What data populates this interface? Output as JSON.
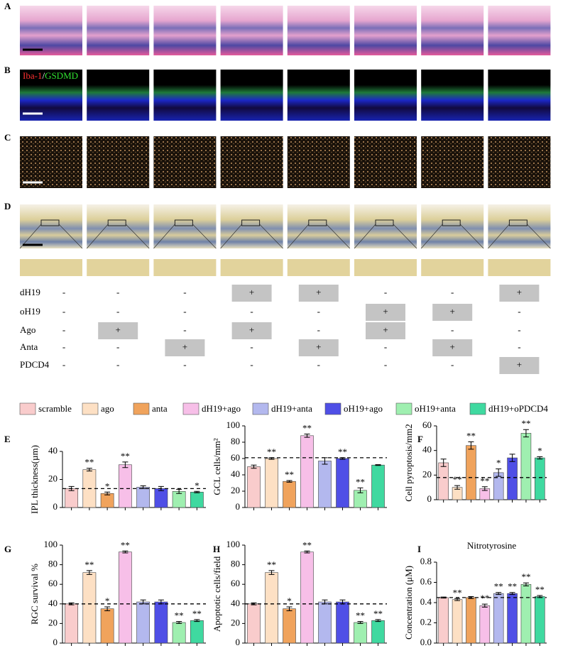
{
  "panel_labels": [
    "A",
    "B",
    "C",
    "D",
    "E",
    "F",
    "G",
    "H",
    "I"
  ],
  "stain_label": [
    "Iba-1",
    "/",
    "GSDMD"
  ],
  "treatments": {
    "rows": [
      {
        "label": "dH19",
        "cells": [
          "-",
          "-",
          "-",
          "+",
          "+",
          "-",
          "-",
          "+"
        ]
      },
      {
        "label": "oH19",
        "cells": [
          "-",
          "-",
          "-",
          "-",
          "-",
          "+",
          "+",
          "-"
        ]
      },
      {
        "label": "Ago",
        "cells": [
          "-",
          "+",
          "-",
          "+",
          "-",
          "+",
          "-",
          "-"
        ]
      },
      {
        "label": "Anta",
        "cells": [
          "-",
          "-",
          "+",
          "-",
          "+",
          "-",
          "+",
          "-"
        ]
      },
      {
        "label": "PDCD4",
        "cells": [
          "-",
          "-",
          "-",
          "-",
          "-",
          "-",
          "-",
          "+"
        ]
      }
    ]
  },
  "legend": [
    {
      "name": "scramble",
      "color": "#f9cccc"
    },
    {
      "name": "ago",
      "color": "#fde0c4"
    },
    {
      "name": "anta",
      "color": "#f0a35c"
    },
    {
      "name": "dH19+ago",
      "color": "#f7bfe8"
    },
    {
      "name": "dH19+anta",
      "color": "#b3b8ee"
    },
    {
      "name": "oH19+ago",
      "color": "#4f4fe6"
    },
    {
      "name": "oH19+anta",
      "color": "#9fefb0"
    },
    {
      "name": "dH19+oPDCD4",
      "color": "#3fd9a0"
    }
  ],
  "chart_data": [
    {
      "type": "bar",
      "ylabel": "IPL thickness(µm)",
      "ylim": [
        0,
        40
      ],
      "yticks": [
        0,
        20,
        40
      ],
      "values": [
        13.5,
        27,
        10,
        30.5,
        14.5,
        13.5,
        11.5,
        11
      ],
      "errors": [
        1.5,
        1,
        1,
        2,
        1,
        1.5,
        1.5,
        0.5
      ],
      "annotations": [
        null,
        "**",
        "*",
        "**",
        null,
        null,
        null,
        "*"
      ],
      "reference": 13.5
    },
    {
      "type": "bar",
      "ylabel": "GCL cells/mm²",
      "ylim": [
        0,
        100
      ],
      "yticks": [
        0,
        20,
        40,
        60,
        80,
        100
      ],
      "values": [
        50,
        60,
        32,
        88,
        57,
        60,
        21,
        52
      ],
      "errors": [
        2,
        1,
        1,
        2,
        4,
        1,
        3,
        0.5
      ],
      "annotations": [
        null,
        "**",
        "**",
        "**",
        null,
        "**",
        "**",
        null
      ],
      "reference": 61
    },
    {
      "type": "bar",
      "ylabel": "Cell pyroptosis/mm2",
      "ylim": [
        0,
        60
      ],
      "yticks": [
        0,
        20,
        40,
        60
      ],
      "values": [
        30,
        10,
        44,
        9,
        22,
        34,
        54,
        34
      ],
      "errors": [
        3,
        1.5,
        3,
        1.5,
        3,
        3,
        3,
        1
      ],
      "annotations": [
        null,
        "**",
        "**",
        "**",
        "*",
        null,
        "**",
        "*"
      ],
      "reference": 18
    },
    {
      "type": "bar",
      "ylabel": "RGC survival %",
      "ylim": [
        0,
        100
      ],
      "yticks": [
        0,
        20,
        40,
        60,
        80,
        100
      ],
      "values": [
        40,
        72,
        35,
        93,
        42,
        42,
        21,
        23
      ],
      "errors": [
        1,
        2,
        2,
        1,
        2,
        2,
        1,
        1
      ],
      "annotations": [
        null,
        "**",
        "*",
        "**",
        null,
        null,
        "**",
        "**"
      ],
      "reference": 40
    },
    {
      "type": "bar",
      "ylabel": "Apoptotic cells/field",
      "ylim": [
        0,
        100
      ],
      "yticks": [
        0,
        20,
        40,
        60,
        80,
        100
      ],
      "values": [
        40,
        72,
        35,
        93,
        42,
        42,
        21,
        23
      ],
      "errors": [
        1,
        2,
        2,
        1,
        2,
        2,
        1,
        1
      ],
      "annotations": [
        null,
        "**",
        "*",
        "**",
        null,
        null,
        "**",
        "**"
      ],
      "reference": 40
    },
    {
      "type": "bar",
      "title": "Nitrotyrosine",
      "ylabel": "Concentration (μM)",
      "ylim": [
        0,
        0.8
      ],
      "yticks": [
        {
          "value": 0,
          "label": "0.0"
        },
        {
          "value": 0.2,
          "label": "0.2"
        },
        {
          "value": 0.4,
          "label": "0.4"
        },
        {
          "value": 0.6,
          "label": "0.6"
        },
        {
          "value": 0.8,
          "label": "0.8"
        }
      ],
      "values": [
        0.45,
        0.43,
        0.45,
        0.37,
        0.49,
        0.49,
        0.58,
        0.46
      ],
      "errors": [
        0.005,
        0.01,
        0.01,
        0.015,
        0.01,
        0.01,
        0.015,
        0.01
      ],
      "annotations": [
        null,
        "**",
        null,
        "**",
        "**",
        "**",
        "**",
        "**"
      ],
      "reference": 0.45
    }
  ]
}
